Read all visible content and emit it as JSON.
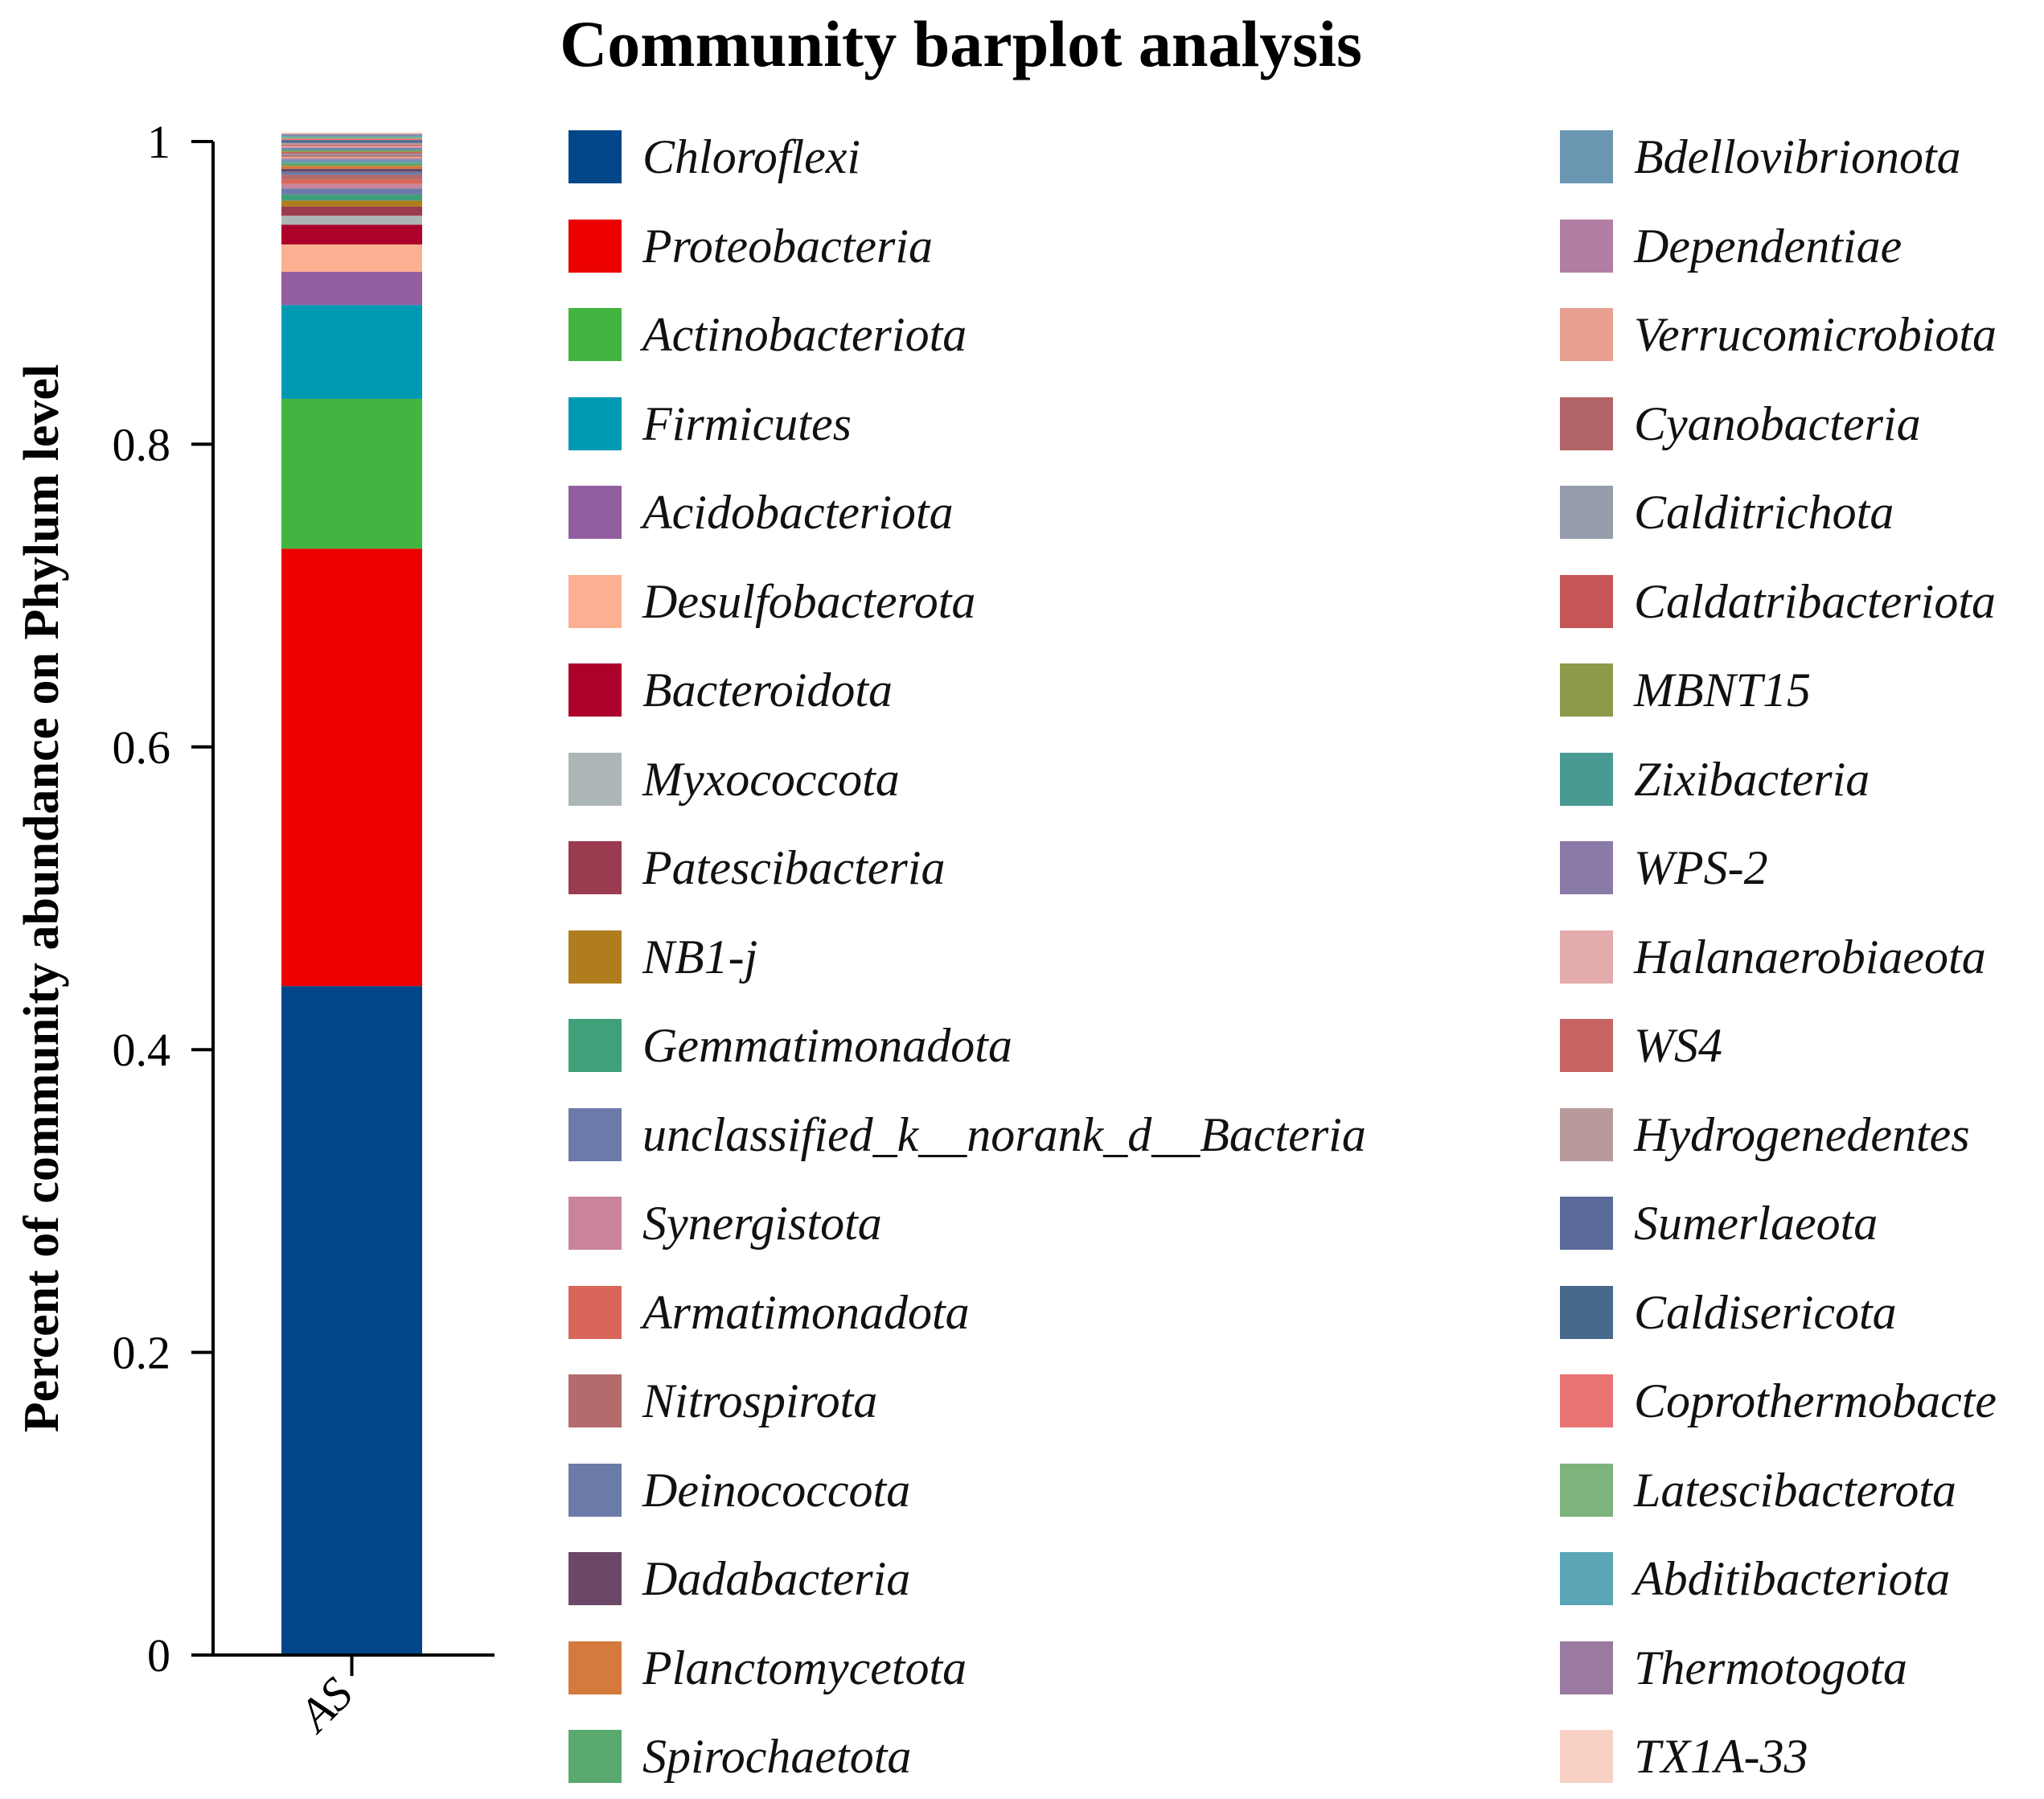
{
  "chart_data": {
    "type": "bar",
    "stacked": true,
    "title": "Community barplot analysis",
    "xlabel": "",
    "ylabel": "Percent of community abundance on Phylum level",
    "categories": [
      "AS"
    ],
    "ylim": [
      0,
      1
    ],
    "yticks": [
      "0",
      "0.2",
      "0.4",
      "0.6",
      "0.8",
      "1"
    ],
    "ytick_values": [
      0,
      0.2,
      0.4,
      0.6,
      0.8,
      1
    ],
    "grid": false,
    "legend_position": "right",
    "series": [
      {
        "name": "Chloroflexi",
        "color": "#02468a",
        "values": [
          0.442
        ]
      },
      {
        "name": "Proteobacteria",
        "color": "#ec0000",
        "values": [
          0.289
        ]
      },
      {
        "name": "Actinobacteriota",
        "color": "#42b540",
        "values": [
          0.099
        ]
      },
      {
        "name": "Firmicutes",
        "color": "#0099b4",
        "values": [
          0.062
        ]
      },
      {
        "name": "Acidobacteriota",
        "color": "#925e9f",
        "values": [
          0.022
        ]
      },
      {
        "name": "Desulfobacterota",
        "color": "#fdaf91",
        "values": [
          0.018
        ]
      },
      {
        "name": "Bacteroidota",
        "color": "#ad002a",
        "values": [
          0.013
        ]
      },
      {
        "name": "Myxococcota",
        "color": "#adb6b6",
        "values": [
          0.006
        ]
      },
      {
        "name": "Patescibacteria",
        "color": "#9b3b4f",
        "values": [
          0.006
        ]
      },
      {
        "name": "NB1-j",
        "color": "#b07d1e",
        "values": [
          0.004
        ]
      },
      {
        "name": "Gemmatimonadota",
        "color": "#3fa07a",
        "values": [
          0.004
        ]
      },
      {
        "name": "unclassified_k__norank_d__Bacteria",
        "color": "#6b7aa8",
        "values": [
          0.004
        ]
      },
      {
        "name": "Synergistota",
        "color": "#c9849a",
        "values": [
          0.003
        ]
      },
      {
        "name": "Armatimonadota",
        "color": "#d9665a",
        "values": [
          0.003
        ]
      },
      {
        "name": "Nitrospirota",
        "color": "#b36b6b",
        "values": [
          0.003
        ]
      },
      {
        "name": "Deinococcota",
        "color": "#6a7ba8",
        "values": [
          0.002
        ]
      },
      {
        "name": "Dadabacteria",
        "color": "#6b4867",
        "values": [
          0.002
        ]
      },
      {
        "name": "Planctomycetota",
        "color": "#d47a3c",
        "values": [
          0.002
        ]
      },
      {
        "name": "Spirochaetota",
        "color": "#5aa96e",
        "values": [
          0.002
        ]
      },
      {
        "name": "Bdellovibrionota",
        "color": "#6a96b2",
        "values": [
          0.002
        ]
      },
      {
        "name": "Dependentiae",
        "color": "#b07fa3",
        "values": [
          0.001
        ]
      },
      {
        "name": "Verrucomicrobiota",
        "color": "#e9a090",
        "values": [
          0.001
        ]
      },
      {
        "name": "Cyanobacteria",
        "color": "#b36468",
        "values": [
          0.001
        ]
      },
      {
        "name": "Calditrichota",
        "color": "#959cab",
        "values": [
          0.001
        ]
      },
      {
        "name": "Caldatribacteriota",
        "color": "#c65656",
        "values": [
          0.001
        ]
      },
      {
        "name": "MBNT15",
        "color": "#8c9a4a",
        "values": [
          0.001
        ]
      },
      {
        "name": "Zixibacteria",
        "color": "#4a9a94",
        "values": [
          0.001
        ]
      },
      {
        "name": "WPS-2",
        "color": "#8a7aa8",
        "values": [
          0.001
        ]
      },
      {
        "name": "Halanaerobiaeota",
        "color": "#e3abab",
        "values": [
          0.001
        ]
      },
      {
        "name": "WS4",
        "color": "#c96464",
        "values": [
          0.001
        ]
      },
      {
        "name": "Hydrogenedentes",
        "color": "#b89a9a",
        "values": [
          0.001
        ]
      },
      {
        "name": "Sumerlaeota",
        "color": "#5a6a98",
        "values": [
          0.001
        ]
      },
      {
        "name": "Caldisericota",
        "color": "#476a8c",
        "values": [
          0.001
        ]
      },
      {
        "name": "Coprothermobacte",
        "color": "#ea7474",
        "values": [
          0.001
        ]
      },
      {
        "name": "Latescibacterota",
        "color": "#7cb47c",
        "values": [
          0.001
        ]
      },
      {
        "name": "Abditibacteriota",
        "color": "#5aa6b6",
        "values": [
          0.001
        ]
      },
      {
        "name": "Thermotogota",
        "color": "#9a7aa0",
        "values": [
          0.001
        ]
      },
      {
        "name": "TX1A-33",
        "color": "#f8d0c4",
        "values": [
          0.001
        ]
      }
    ]
  }
}
